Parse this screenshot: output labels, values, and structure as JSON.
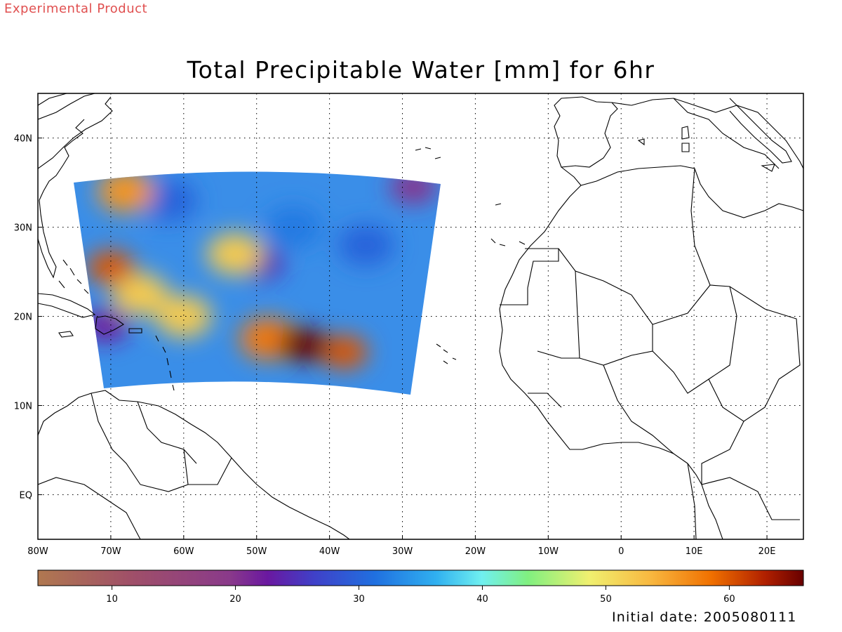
{
  "watermark": "Experimental Product",
  "title": "Total Precipitable Water [mm] for 6hr",
  "initial_date": "Initial date: 2005080111",
  "map": {
    "lon_range": [
      -80,
      25
    ],
    "lat_range": [
      -5,
      45
    ],
    "lon_ticks": [
      {
        "value": -80,
        "label": "80W"
      },
      {
        "value": -70,
        "label": "70W"
      },
      {
        "value": -60,
        "label": "60W"
      },
      {
        "value": -50,
        "label": "50W"
      },
      {
        "value": -40,
        "label": "40W"
      },
      {
        "value": -30,
        "label": "30W"
      },
      {
        "value": -20,
        "label": "20W"
      },
      {
        "value": -10,
        "label": "10W"
      },
      {
        "value": 0,
        "label": "0"
      },
      {
        "value": 10,
        "label": "10E"
      },
      {
        "value": 20,
        "label": "20E"
      }
    ],
    "lat_ticks": [
      {
        "value": 0,
        "label": "EQ"
      },
      {
        "value": 10,
        "label": "10N"
      },
      {
        "value": 20,
        "label": "20N"
      },
      {
        "value": 30,
        "label": "30N"
      },
      {
        "value": 40,
        "label": "40N"
      }
    ],
    "grid": "dotted"
  },
  "chart_data": {
    "type": "heatmap",
    "title": "Total Precipitable Water [mm] for 6hr",
    "colorbar": {
      "range": [
        4,
        66
      ],
      "ticks": [
        10,
        20,
        30,
        40,
        50,
        60
      ]
    },
    "features": [
      {
        "lon": -43.5,
        "lat": 16.8,
        "value": 66
      },
      {
        "lon": -38,
        "lat": 16,
        "value": 60
      },
      {
        "lon": -48.5,
        "lat": 17.5,
        "value": 58
      },
      {
        "lon": -70,
        "lat": 25.5,
        "value": 60
      },
      {
        "lon": -68,
        "lat": 34,
        "value": 56
      },
      {
        "lon": -53,
        "lat": 27,
        "value": 52
      },
      {
        "lon": -66,
        "lat": 22.5,
        "value": 52
      },
      {
        "lon": -60,
        "lat": 20,
        "value": 52
      },
      {
        "lon": -70.7,
        "lat": 19,
        "value": 22
      },
      {
        "lon": -49.5,
        "lat": 26,
        "value": 24
      },
      {
        "lon": -28.5,
        "lat": 34.5,
        "value": 20
      },
      {
        "lon": -35,
        "lat": 28,
        "value": 30
      },
      {
        "lon": -62,
        "lat": 33,
        "value": 30
      },
      {
        "lon": -45,
        "lat": 30,
        "value": 32
      }
    ]
  }
}
